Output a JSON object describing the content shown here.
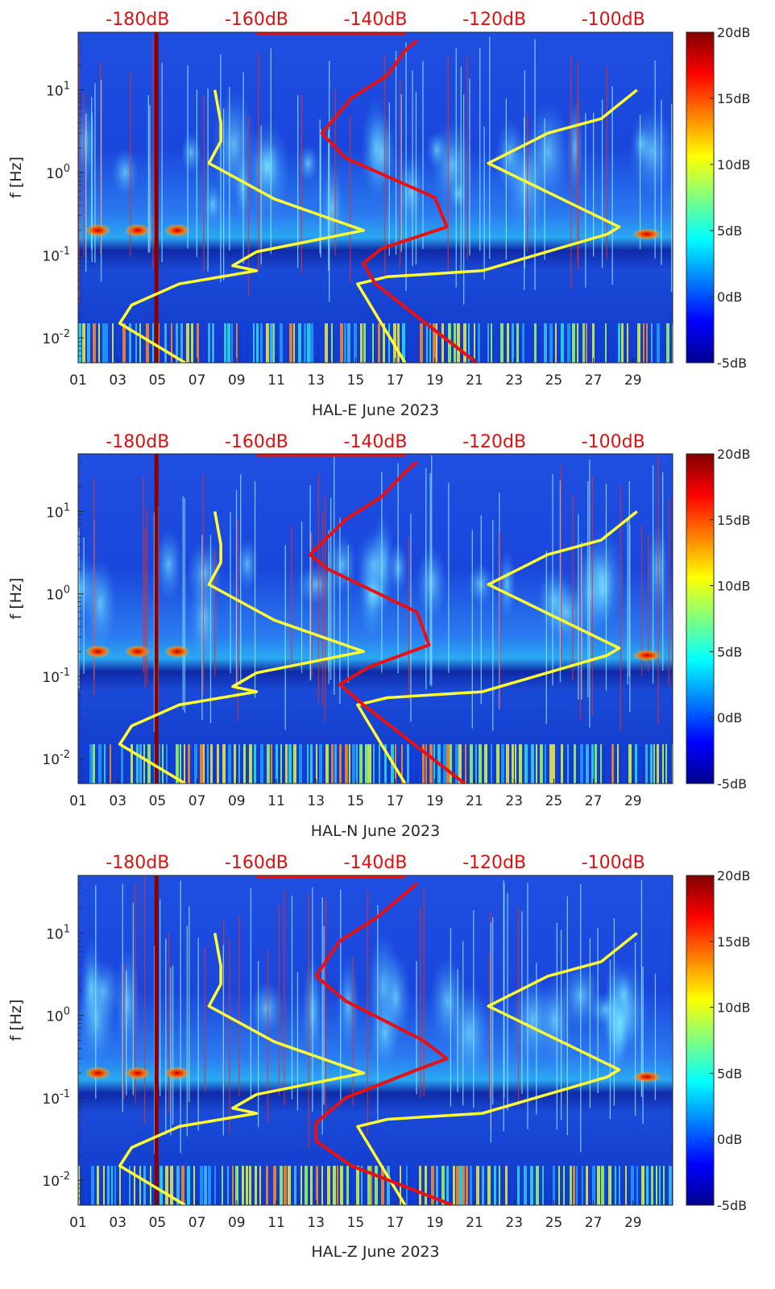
{
  "chart_data": [
    {
      "type": "heatmap",
      "title": "HAL-E June 2023",
      "xlabel": "HAL-E June 2023",
      "ylabel": "f [Hz]",
      "x_day_range": [
        1,
        31
      ],
      "x_tick_labels": [
        "01",
        "03",
        "05",
        "07",
        "09",
        "11",
        "13",
        "15",
        "17",
        "19",
        "21",
        "23",
        "25",
        "27",
        "29"
      ],
      "y_scale": "log",
      "y_range_hz": [
        0.005,
        50
      ],
      "y_tick_labels": [
        "10^-2",
        "10^-1",
        "10^0",
        "10^1"
      ],
      "top_axis_labels": [
        "-180dB",
        "-160dB",
        "-140dB",
        "-120dB",
        "-100dB"
      ],
      "colorbar": {
        "range_db": [
          -5,
          20
        ],
        "tick_labels": [
          "20dB",
          "15dB",
          "10dB",
          "5dB",
          "0dB",
          "-5dB"
        ]
      },
      "overlay_lines": {
        "yellow_low": [
          [
            -172,
            0.005
          ],
          [
            -183,
            0.015
          ],
          [
            -181,
            0.025
          ],
          [
            -173,
            0.045
          ],
          [
            -160,
            0.065
          ],
          [
            -164,
            0.075
          ],
          [
            -160,
            0.11
          ],
          [
            -142,
            0.2
          ],
          [
            -157,
            0.48
          ],
          [
            -168,
            1.3
          ],
          [
            -166,
            2.4
          ],
          [
            -166,
            4
          ],
          [
            -167,
            10
          ]
        ],
        "yellow_high": [
          [
            -135,
            0.005
          ],
          [
            -143,
            0.045
          ],
          [
            -138,
            0.055
          ],
          [
            -122,
            0.065
          ],
          [
            -101,
            0.18
          ],
          [
            -99,
            0.22
          ],
          [
            -121,
            1.3
          ],
          [
            -111,
            3
          ],
          [
            -102,
            4.5
          ],
          [
            -96,
            10
          ]
        ],
        "red": [
          [
            -123,
            0.005
          ],
          [
            -140,
            0.045
          ],
          [
            -142,
            0.08
          ],
          [
            -139,
            0.12
          ],
          [
            -128,
            0.22
          ],
          [
            -130,
            0.5
          ],
          [
            -145,
            1.5
          ],
          [
            -149,
            3
          ],
          [
            -144,
            8
          ],
          [
            -138,
            15
          ],
          [
            -135,
            30
          ],
          [
            -133,
            40
          ]
        ]
      }
    },
    {
      "type": "heatmap",
      "title": "HAL-N June 2023",
      "xlabel": "HAL-N June 2023",
      "ylabel": "f [Hz]",
      "x_day_range": [
        1,
        31
      ],
      "x_tick_labels": [
        "01",
        "03",
        "05",
        "07",
        "09",
        "11",
        "13",
        "15",
        "17",
        "19",
        "21",
        "23",
        "25",
        "27",
        "29"
      ],
      "y_scale": "log",
      "y_range_hz": [
        0.005,
        50
      ],
      "y_tick_labels": [
        "10^-2",
        "10^-1",
        "10^0",
        "10^1"
      ],
      "top_axis_labels": [
        "-180dB",
        "-160dB",
        "-140dB",
        "-120dB",
        "-100dB"
      ],
      "colorbar": {
        "range_db": [
          -5,
          20
        ],
        "tick_labels": [
          "20dB",
          "15dB",
          "10dB",
          "5dB",
          "0dB",
          "-5dB"
        ]
      },
      "overlay_lines": {
        "yellow_low": [
          [
            -172,
            0.005
          ],
          [
            -183,
            0.015
          ],
          [
            -181,
            0.025
          ],
          [
            -173,
            0.045
          ],
          [
            -160,
            0.065
          ],
          [
            -164,
            0.075
          ],
          [
            -160,
            0.11
          ],
          [
            -142,
            0.2
          ],
          [
            -157,
            0.48
          ],
          [
            -168,
            1.3
          ],
          [
            -166,
            2.4
          ],
          [
            -166,
            4
          ],
          [
            -167,
            10
          ]
        ],
        "yellow_high": [
          [
            -135,
            0.005
          ],
          [
            -143,
            0.045
          ],
          [
            -138,
            0.055
          ],
          [
            -122,
            0.065
          ],
          [
            -101,
            0.18
          ],
          [
            -99,
            0.22
          ],
          [
            -121,
            1.3
          ],
          [
            -111,
            3
          ],
          [
            -102,
            4.5
          ],
          [
            -96,
            10
          ]
        ],
        "red": [
          [
            -125,
            0.005
          ],
          [
            -142,
            0.045
          ],
          [
            -146,
            0.08
          ],
          [
            -141,
            0.13
          ],
          [
            -131,
            0.24
          ],
          [
            -133,
            0.6
          ],
          [
            -148,
            2
          ],
          [
            -151,
            3
          ],
          [
            -145,
            8
          ],
          [
            -139,
            15
          ],
          [
            -135,
            30
          ],
          [
            -133,
            40
          ]
        ]
      }
    },
    {
      "type": "heatmap",
      "title": "HAL-Z June 2023",
      "xlabel": "HAL-Z June 2023",
      "ylabel": "f [Hz]",
      "x_day_range": [
        1,
        31
      ],
      "x_tick_labels": [
        "01",
        "03",
        "05",
        "07",
        "09",
        "11",
        "13",
        "15",
        "17",
        "19",
        "21",
        "23",
        "25",
        "27",
        "29"
      ],
      "y_scale": "log",
      "y_range_hz": [
        0.005,
        50
      ],
      "y_tick_labels": [
        "10^-2",
        "10^-1",
        "10^0",
        "10^1"
      ],
      "top_axis_labels": [
        "-180dB",
        "-160dB",
        "-140dB",
        "-120dB",
        "-100dB"
      ],
      "colorbar": {
        "range_db": [
          -5,
          20
        ],
        "tick_labels": [
          "20dB",
          "15dB",
          "10dB",
          "5dB",
          "0dB",
          "-5dB"
        ]
      },
      "overlay_lines": {
        "yellow_low": [
          [
            -172,
            0.005
          ],
          [
            -183,
            0.015
          ],
          [
            -181,
            0.025
          ],
          [
            -173,
            0.045
          ],
          [
            -160,
            0.065
          ],
          [
            -164,
            0.075
          ],
          [
            -160,
            0.11
          ],
          [
            -142,
            0.2
          ],
          [
            -157,
            0.48
          ],
          [
            -168,
            1.3
          ],
          [
            -166,
            2.4
          ],
          [
            -166,
            4
          ],
          [
            -167,
            10
          ]
        ],
        "yellow_high": [
          [
            -135,
            0.005
          ],
          [
            -143,
            0.045
          ],
          [
            -138,
            0.055
          ],
          [
            -122,
            0.065
          ],
          [
            -101,
            0.18
          ],
          [
            -99,
            0.22
          ],
          [
            -121,
            1.3
          ],
          [
            -111,
            3
          ],
          [
            -102,
            4.5
          ],
          [
            -96,
            10
          ]
        ],
        "red": [
          [
            -127,
            0.005
          ],
          [
            -144,
            0.015
          ],
          [
            -150,
            0.03
          ],
          [
            -150,
            0.05
          ],
          [
            -145,
            0.1
          ],
          [
            -133,
            0.22
          ],
          [
            -128,
            0.3
          ],
          [
            -132,
            0.5
          ],
          [
            -145,
            1.5
          ],
          [
            -150,
            3
          ],
          [
            -146,
            8
          ],
          [
            -140,
            15
          ],
          [
            -135,
            30
          ],
          [
            -133,
            40
          ]
        ]
      }
    }
  ],
  "colors": {
    "overlay_yellow": "#ffff33",
    "overlay_red": "#e81010",
    "top_label_red": "#e01010"
  }
}
